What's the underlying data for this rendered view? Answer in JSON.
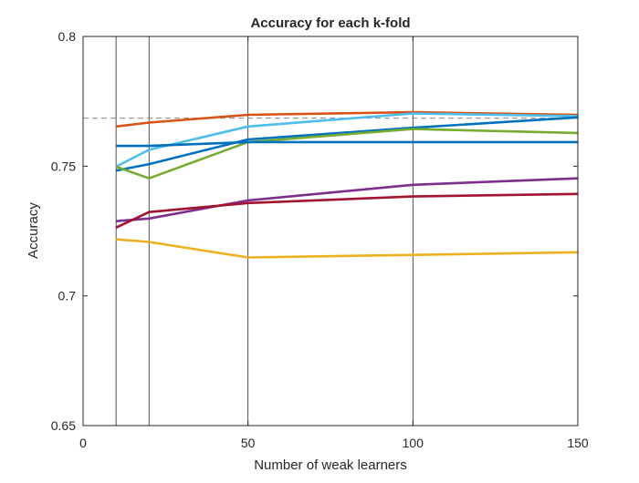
{
  "chart_data": {
    "type": "line",
    "title": "Accuracy for each k-fold",
    "xlabel": "Number of weak learners",
    "ylabel": "Accuracy",
    "xlim": [
      0,
      150
    ],
    "ylim": [
      0.65,
      0.8
    ],
    "xticks": [
      0,
      50,
      100,
      150
    ],
    "xtick_labels": [
      "0",
      "50",
      "100",
      "150"
    ],
    "yticks": [
      0.65,
      0.7,
      0.75,
      0.8
    ],
    "ytick_labels": [
      "0.65",
      "0.7",
      "0.75",
      "0.8"
    ],
    "grid": false,
    "vertical_lines_x": [
      10,
      20,
      50,
      100
    ],
    "reference_line": {
      "y": 0.7685,
      "color": "#888888",
      "style": "dashed"
    },
    "series": [
      {
        "color": "#D95319",
        "x": [
          10,
          20,
          50,
          100,
          150
        ],
        "y": [
          0.7653,
          0.7668,
          0.7698,
          0.7708,
          0.7698
        ]
      },
      {
        "color": "#4DBEEE",
        "x": [
          10,
          20,
          50,
          100,
          150
        ],
        "y": [
          0.7498,
          0.7563,
          0.7653,
          0.7703,
          0.7693
        ]
      },
      {
        "color": "#0072BD",
        "x": [
          10,
          20,
          50,
          100,
          150
        ],
        "y": [
          0.7483,
          0.7508,
          0.7603,
          0.7648,
          0.7688
        ]
      },
      {
        "color": "#77AC30",
        "x": [
          10,
          20,
          50,
          100,
          150
        ],
        "y": [
          0.7498,
          0.7453,
          0.7593,
          0.7643,
          0.7628
        ]
      },
      {
        "color": "#0072BD",
        "x": [
          10,
          20,
          50,
          100,
          150
        ],
        "y": [
          0.7578,
          0.7578,
          0.7593,
          0.7593,
          0.7593
        ]
      },
      {
        "color": "#7E2F8E",
        "x": [
          10,
          20,
          50,
          100,
          150
        ],
        "y": [
          0.7288,
          0.7298,
          0.7368,
          0.7428,
          0.7453
        ]
      },
      {
        "color": "#A2142F",
        "x": [
          10,
          20,
          50,
          100,
          150
        ],
        "y": [
          0.7263,
          0.7323,
          0.7358,
          0.7383,
          0.7393
        ]
      },
      {
        "color": "#EDB120",
        "x": [
          10,
          20,
          50,
          100,
          150
        ],
        "y": [
          0.7218,
          0.7208,
          0.7148,
          0.7158,
          0.7168
        ]
      }
    ]
  }
}
